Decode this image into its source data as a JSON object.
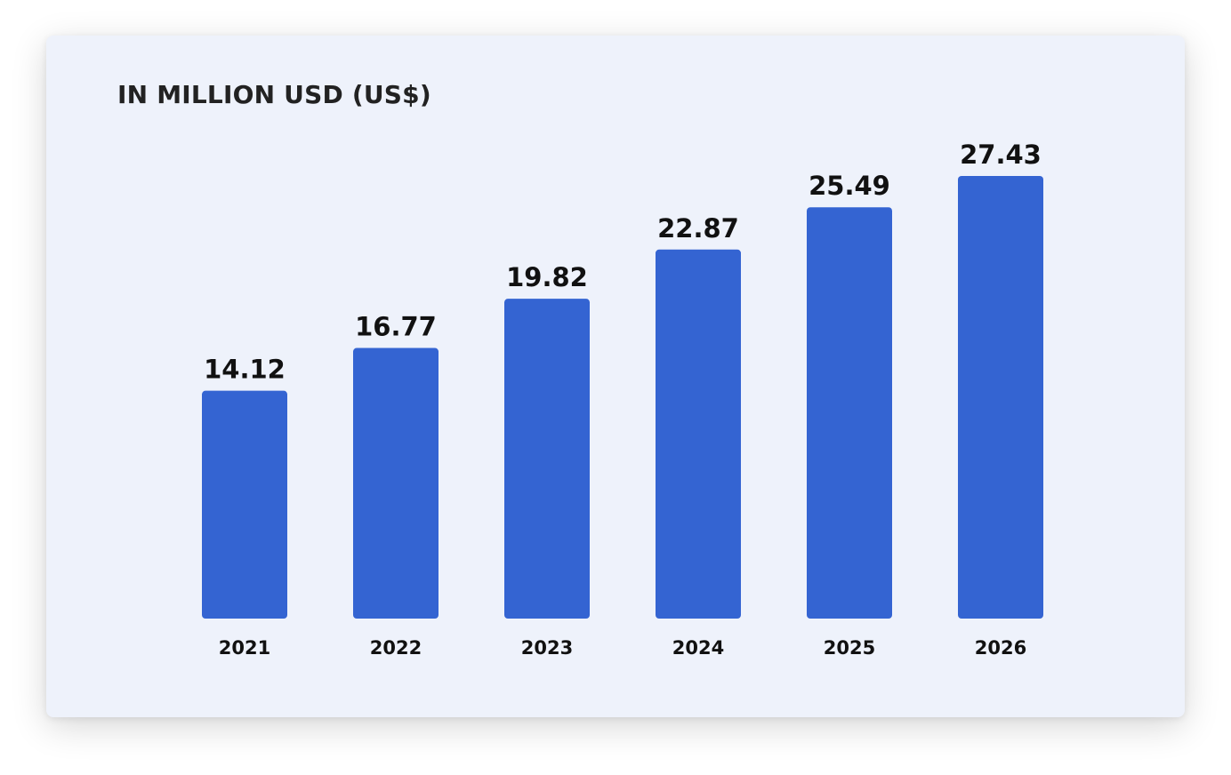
{
  "chart_data": {
    "type": "bar",
    "title": "IN MILLION USD (US$)",
    "categories": [
      "2021",
      "2022",
      "2023",
      "2024",
      "2025",
      "2026"
    ],
    "values": [
      14.12,
      16.77,
      19.82,
      22.87,
      25.49,
      27.43
    ],
    "value_labels": [
      "14.12",
      "16.77",
      "19.82",
      "22.87",
      "25.49",
      "27.43"
    ],
    "xlabel": "",
    "ylabel": "",
    "ylim": [
      0,
      28
    ],
    "grid": false,
    "legend": "none",
    "bar_color": "#3464d2",
    "background_color": "#eef2fb"
  }
}
